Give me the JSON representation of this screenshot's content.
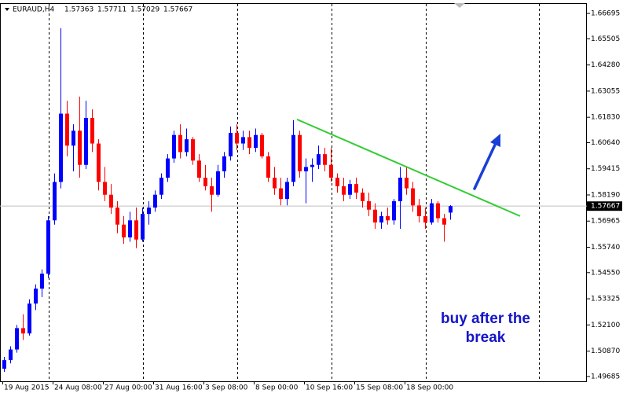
{
  "chart_data": {
    "type": "candlestick",
    "title": "EURAUD,H4",
    "annotation": [
      "buy after the",
      "break"
    ],
    "categories": [
      "19 Aug 2015",
      null,
      null,
      null,
      null,
      null,
      null,
      null,
      "24 Aug 08:00",
      null,
      null,
      null,
      null,
      null,
      null,
      null,
      "27 Aug 00:00",
      null,
      null,
      null,
      null,
      null,
      null,
      null,
      "31 Aug 16:00",
      null,
      null,
      null,
      null,
      null,
      null,
      null,
      "3 Sep 08:00",
      null,
      null,
      null,
      null,
      null,
      null,
      null,
      "8 Sep 00:00",
      null,
      null,
      null,
      null,
      null,
      null,
      null,
      "10 Sep 16:00",
      null,
      null,
      null,
      null,
      null,
      null,
      null,
      "15 Sep 08:00",
      null,
      null,
      null,
      null,
      null,
      null,
      null,
      "18 Sep 00:00",
      null,
      null,
      null,
      null,
      null,
      null,
      null
    ],
    "open": [
      1.5005,
      1.5045,
      1.5095,
      1.5195,
      1.517,
      1.531,
      1.538,
      1.545,
      1.57,
      1.588,
      1.62,
      1.605,
      1.612,
      1.596,
      1.618,
      1.606,
      1.588,
      1.582,
      1.576,
      1.568,
      1.562,
      1.57,
      1.561,
      1.573,
      1.576,
      1.582,
      1.59,
      1.599,
      1.61,
      1.602,
      1.608,
      1.598,
      1.59,
      1.586,
      1.582,
      1.593,
      1.6,
      1.611,
      1.606,
      1.609,
      1.604,
      1.61,
      1.6,
      1.59,
      1.585,
      1.58,
      1.588,
      1.61,
      1.593,
      1.595,
      1.596,
      1.601,
      1.596,
      1.59,
      1.586,
      1.582,
      1.587,
      1.583,
      1.579,
      1.575,
      1.569,
      1.572,
      1.57,
      1.579,
      1.59,
      1.585,
      1.577,
      1.572,
      1.569,
      1.578,
      1.571,
      1.57363
    ],
    "high": [
      1.506,
      1.511,
      1.521,
      1.526,
      1.533,
      1.54,
      1.547,
      1.572,
      1.592,
      1.66,
      1.626,
      1.615,
      1.628,
      1.626,
      1.622,
      1.608,
      1.595,
      1.587,
      1.579,
      1.572,
      1.574,
      1.576,
      1.576,
      1.579,
      1.584,
      1.592,
      1.601,
      1.612,
      1.615,
      1.613,
      1.609,
      1.601,
      1.596,
      1.59,
      1.596,
      1.602,
      1.614,
      1.615,
      1.612,
      1.612,
      1.613,
      1.611,
      1.602,
      1.595,
      1.59,
      1.59,
      1.617,
      1.612,
      1.599,
      1.599,
      1.605,
      1.604,
      1.604,
      1.592,
      1.59,
      1.589,
      1.59,
      1.585,
      1.583,
      1.578,
      1.574,
      1.576,
      1.58,
      1.595,
      1.595,
      1.588,
      1.58,
      1.576,
      1.58,
      1.579,
      1.573,
      1.57711
    ],
    "low": [
      1.499,
      1.503,
      1.508,
      1.514,
      1.516,
      1.528,
      1.534,
      1.543,
      1.568,
      1.585,
      1.6,
      1.593,
      1.59,
      1.594,
      1.602,
      1.584,
      1.579,
      1.573,
      1.564,
      1.559,
      1.56,
      1.557,
      1.56,
      1.568,
      1.574,
      1.58,
      1.588,
      1.597,
      1.599,
      1.6,
      1.596,
      1.588,
      1.584,
      1.574,
      1.581,
      1.59,
      1.598,
      1.603,
      1.603,
      1.601,
      1.602,
      1.599,
      1.588,
      1.582,
      1.577,
      1.577,
      1.586,
      1.59,
      1.578,
      1.588,
      1.594,
      1.593,
      1.588,
      1.583,
      1.579,
      1.58,
      1.58,
      1.576,
      1.572,
      1.566,
      1.566,
      1.568,
      1.568,
      1.566,
      1.582,
      1.574,
      1.569,
      1.566,
      1.568,
      1.569,
      1.56,
      1.57029
    ],
    "close": [
      1.5045,
      1.5095,
      1.5195,
      1.517,
      1.531,
      1.538,
      1.545,
      1.57,
      1.588,
      1.62,
      1.605,
      1.612,
      1.596,
      1.618,
      1.606,
      1.588,
      1.582,
      1.576,
      1.568,
      1.562,
      1.57,
      1.561,
      1.573,
      1.576,
      1.582,
      1.59,
      1.599,
      1.61,
      1.602,
      1.608,
      1.598,
      1.59,
      1.586,
      1.582,
      1.593,
      1.6,
      1.611,
      1.606,
      1.609,
      1.604,
      1.61,
      1.6,
      1.59,
      1.585,
      1.58,
      1.588,
      1.61,
      1.593,
      1.595,
      1.596,
      1.601,
      1.596,
      1.59,
      1.586,
      1.582,
      1.587,
      1.583,
      1.579,
      1.575,
      1.569,
      1.572,
      1.57,
      1.579,
      1.59,
      1.585,
      1.577,
      1.572,
      1.569,
      1.578,
      1.571,
      1.568,
      1.57667
    ],
    "up_color": "#0000ff",
    "down_color": "#ff0000",
    "trendline": [
      1.6173,
      1.572
    ],
    "trendline_color": "#33cc33",
    "ylim": [
      1.4946,
      1.6714
    ],
    "yticks": [
      {
        "value": 1.66695,
        "label": "1.66695"
      },
      {
        "value": 1.65505,
        "label": "1.65505"
      },
      {
        "value": 1.6428,
        "label": "1.64280"
      },
      {
        "value": 1.63055,
        "label": "1.63055"
      },
      {
        "value": 1.6183,
        "label": "1.61830"
      },
      {
        "value": 1.6064,
        "label": "1.60640"
      },
      {
        "value": 1.59415,
        "label": "1.59415"
      },
      {
        "value": 1.5819,
        "label": "1.58190"
      },
      {
        "value": 1.56965,
        "label": "1.56965"
      },
      {
        "value": 1.5574,
        "label": "1.55740"
      },
      {
        "value": 1.5455,
        "label": "1.54550"
      },
      {
        "value": 1.53325,
        "label": "1.53325"
      },
      {
        "value": 1.521,
        "label": "1.52100"
      },
      {
        "value": 1.5087,
        "label": "1.50870"
      },
      {
        "value": 1.49685,
        "label": "1.49685"
      }
    ]
  }
}
